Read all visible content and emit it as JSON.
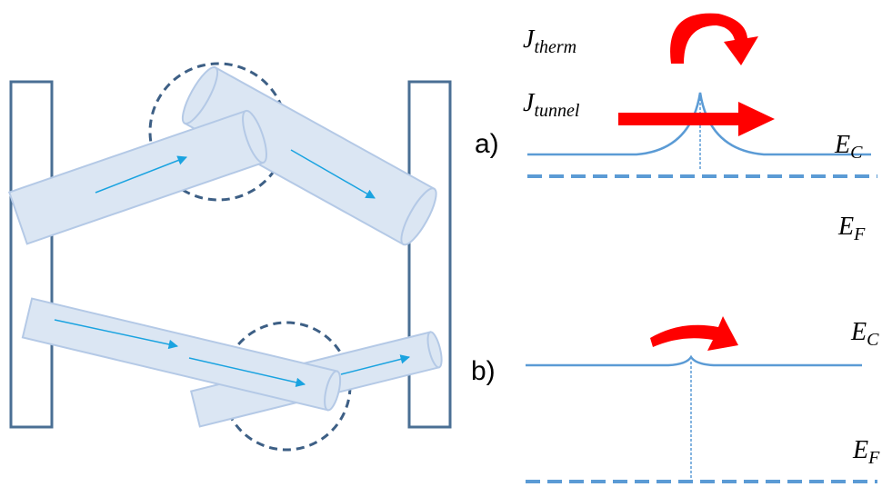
{
  "panels": [
    {
      "label": "a)",
      "currents": [
        {
          "symbol": "J",
          "subscript": "therm"
        },
        {
          "symbol": "J",
          "subscript": "tunnel"
        }
      ],
      "levels": [
        {
          "symbol": "E",
          "subscript": "C"
        },
        {
          "symbol": "E",
          "subscript": "F"
        }
      ]
    },
    {
      "label": "b)",
      "levels": [
        {
          "symbol": "E",
          "subscript": "C"
        },
        {
          "symbol": "E",
          "subscript": "F"
        }
      ]
    }
  ]
}
